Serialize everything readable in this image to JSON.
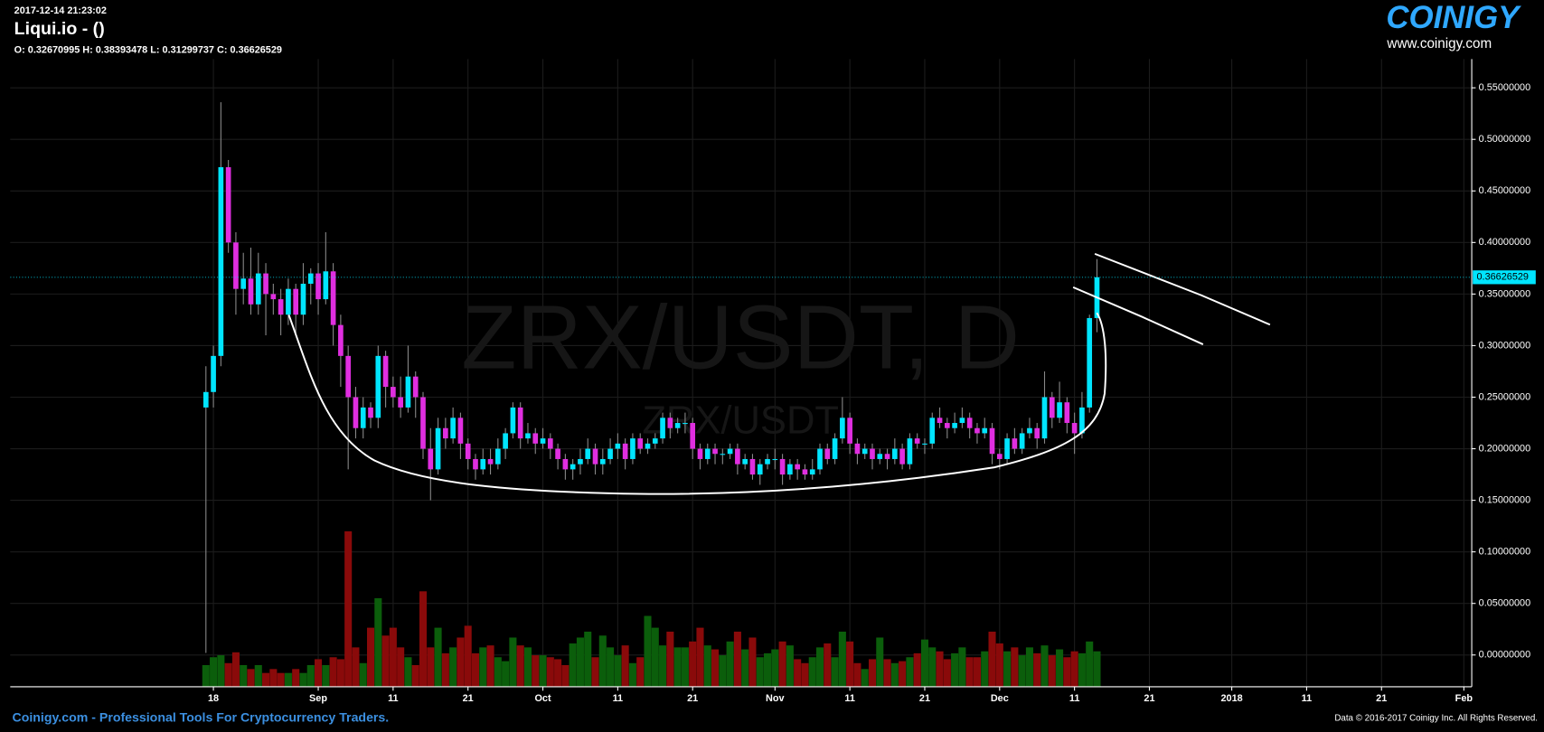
{
  "timestamp": "2017-12-14 21:23:02",
  "exchange_title": "Liqui.io -  ()",
  "ohlc_label": "O: 0.32670995 H: 0.38393478 L: 0.31299737 C: 0.36626529",
  "logo": "COINIGY",
  "logo_url": "www.coinigy.com",
  "footer_left": "Coinigy.com - Professional Tools For Cryptocurrency Traders.",
  "footer_right": "Data © 2016-2017 Coinigy Inc. All Rights Reserved.",
  "chart_data": {
    "type": "candlestick",
    "watermark": "ZRX/USDT, D",
    "watermark_small": "ZRX/USDT",
    "up_color": "#00e5ff",
    "down_color": "#e02ee0",
    "volume_up_color": "#0b5e0b",
    "volume_down_color": "#8a0a0a",
    "grid": true,
    "xlim": [
      "2017-07-22",
      "2018-02-01"
    ],
    "xticks": [
      {
        "value": "2017-08-18",
        "label": "18"
      },
      {
        "value": "2017-09-01",
        "label": "Sep"
      },
      {
        "value": "2017-09-11",
        "label": "11"
      },
      {
        "value": "2017-09-21",
        "label": "21"
      },
      {
        "value": "2017-10-01",
        "label": "Oct"
      },
      {
        "value": "2017-10-11",
        "label": "11"
      },
      {
        "value": "2017-10-21",
        "label": "21"
      },
      {
        "value": "2017-11-01",
        "label": "Nov"
      },
      {
        "value": "2017-11-11",
        "label": "11"
      },
      {
        "value": "2017-11-21",
        "label": "21"
      },
      {
        "value": "2017-12-01",
        "label": "Dec"
      },
      {
        "value": "2017-12-11",
        "label": "11"
      },
      {
        "value": "2017-12-21",
        "label": "21"
      },
      {
        "value": "2018-01-01",
        "label": "2018"
      },
      {
        "value": "2018-01-11",
        "label": "11"
      },
      {
        "value": "2018-01-21",
        "label": "21"
      },
      {
        "value": "2018-02-01",
        "label": "Feb"
      }
    ],
    "ylim": [
      -0.0308,
      0.5779
    ],
    "yticks": [
      {
        "value": 0,
        "label": "0.00000000"
      },
      {
        "value": 0.05,
        "label": "0.05000000"
      },
      {
        "value": 0.1,
        "label": "0.10000000"
      },
      {
        "value": 0.15,
        "label": "0.15000000"
      },
      {
        "value": 0.2,
        "label": "0.20000000"
      },
      {
        "value": 0.25,
        "label": "0.25000000"
      },
      {
        "value": 0.3,
        "label": "0.30000000"
      },
      {
        "value": 0.35,
        "label": "0.35000000"
      },
      {
        "value": 0.4,
        "label": "0.40000000"
      },
      {
        "value": 0.45,
        "label": "0.45000000"
      },
      {
        "value": 0.5,
        "label": "0.50000000"
      },
      {
        "value": 0.55,
        "label": "0.55000000"
      }
    ],
    "x": [
      "2017-08-17",
      "2017-08-18",
      "2017-08-19",
      "2017-08-20",
      "2017-08-21",
      "2017-08-22",
      "2017-08-23",
      "2017-08-24",
      "2017-08-25",
      "2017-08-26",
      "2017-08-27",
      "2017-08-28",
      "2017-08-29",
      "2017-08-30",
      "2017-08-31",
      "2017-09-01",
      "2017-09-02",
      "2017-09-03",
      "2017-09-04",
      "2017-09-05",
      "2017-09-06",
      "2017-09-07",
      "2017-09-08",
      "2017-09-09",
      "2017-09-10",
      "2017-09-11",
      "2017-09-12",
      "2017-09-13",
      "2017-09-14",
      "2017-09-15",
      "2017-09-16",
      "2017-09-17",
      "2017-09-18",
      "2017-09-19",
      "2017-09-20",
      "2017-09-21",
      "2017-09-22",
      "2017-09-23",
      "2017-09-24",
      "2017-09-25",
      "2017-09-26",
      "2017-09-27",
      "2017-09-28",
      "2017-09-29",
      "2017-09-30",
      "2017-10-01",
      "2017-10-02",
      "2017-10-03",
      "2017-10-04",
      "2017-10-05",
      "2017-10-06",
      "2017-10-07",
      "2017-10-08",
      "2017-10-09",
      "2017-10-10",
      "2017-10-11",
      "2017-10-12",
      "2017-10-13",
      "2017-10-14",
      "2017-10-15",
      "2017-10-16",
      "2017-10-17",
      "2017-10-18",
      "2017-10-19",
      "2017-10-20",
      "2017-10-21",
      "2017-10-22",
      "2017-10-23",
      "2017-10-24",
      "2017-10-25",
      "2017-10-26",
      "2017-10-27",
      "2017-10-28",
      "2017-10-29",
      "2017-10-30",
      "2017-10-31",
      "2017-11-01",
      "2017-11-02",
      "2017-11-03",
      "2017-11-04",
      "2017-11-05",
      "2017-11-06",
      "2017-11-07",
      "2017-11-08",
      "2017-11-09",
      "2017-11-10",
      "2017-11-11",
      "2017-11-12",
      "2017-11-13",
      "2017-11-14",
      "2017-11-15",
      "2017-11-16",
      "2017-11-17",
      "2017-11-18",
      "2017-11-19",
      "2017-11-20",
      "2017-11-21",
      "2017-11-22",
      "2017-11-23",
      "2017-11-24",
      "2017-11-25",
      "2017-11-26",
      "2017-11-27",
      "2017-11-28",
      "2017-11-29",
      "2017-11-30",
      "2017-12-01",
      "2017-12-02",
      "2017-12-03",
      "2017-12-04",
      "2017-12-05",
      "2017-12-06",
      "2017-12-07",
      "2017-12-08",
      "2017-12-09",
      "2017-12-10",
      "2017-12-11",
      "2017-12-12",
      "2017-12-13",
      "2017-12-14"
    ],
    "open": [
      0.24,
      0.255,
      0.29,
      0.473,
      0.4,
      0.355,
      0.365,
      0.34,
      0.37,
      0.35,
      0.345,
      0.33,
      0.355,
      0.33,
      0.36,
      0.37,
      0.345,
      0.372,
      0.32,
      0.29,
      0.25,
      0.22,
      0.24,
      0.23,
      0.29,
      0.26,
      0.25,
      0.24,
      0.27,
      0.25,
      0.2,
      0.18,
      0.22,
      0.21,
      0.23,
      0.205,
      0.19,
      0.18,
      0.19,
      0.185,
      0.2,
      0.215,
      0.24,
      0.21,
      0.215,
      0.205,
      0.21,
      0.2,
      0.19,
      0.18,
      0.185,
      0.19,
      0.2,
      0.185,
      0.19,
      0.2,
      0.205,
      0.19,
      0.21,
      0.2,
      0.205,
      0.21,
      0.23,
      0.22,
      0.225,
      0.225,
      0.2,
      0.19,
      0.2,
      0.195,
      0.195,
      0.2,
      0.185,
      0.19,
      0.175,
      0.185,
      0.19,
      0.19,
      0.175,
      0.185,
      0.18,
      0.175,
      0.18,
      0.2,
      0.19,
      0.21,
      0.23,
      0.205,
      0.195,
      0.2,
      0.19,
      0.195,
      0.19,
      0.2,
      0.185,
      0.21,
      0.205,
      0.205,
      0.23,
      0.225,
      0.22,
      0.225,
      0.23,
      0.22,
      0.215,
      0.22,
      0.195,
      0.19,
      0.21,
      0.2,
      0.215,
      0.22,
      0.21,
      0.25,
      0.23,
      0.245,
      0.225,
      0.215,
      0.24,
      0.32670995
    ],
    "high": [
      0.28,
      0.3,
      0.536,
      0.48,
      0.41,
      0.39,
      0.395,
      0.39,
      0.38,
      0.36,
      0.355,
      0.365,
      0.36,
      0.38,
      0.375,
      0.38,
      0.41,
      0.38,
      0.33,
      0.3,
      0.26,
      0.25,
      0.245,
      0.3,
      0.295,
      0.27,
      0.27,
      0.3,
      0.275,
      0.255,
      0.22,
      0.23,
      0.23,
      0.24,
      0.235,
      0.21,
      0.195,
      0.2,
      0.2,
      0.21,
      0.22,
      0.245,
      0.245,
      0.225,
      0.22,
      0.22,
      0.215,
      0.205,
      0.195,
      0.19,
      0.2,
      0.21,
      0.205,
      0.2,
      0.21,
      0.215,
      0.21,
      0.215,
      0.215,
      0.21,
      0.215,
      0.235,
      0.235,
      0.23,
      0.235,
      0.23,
      0.205,
      0.205,
      0.205,
      0.2,
      0.205,
      0.205,
      0.195,
      0.195,
      0.19,
      0.195,
      0.2,
      0.195,
      0.19,
      0.19,
      0.185,
      0.19,
      0.205,
      0.205,
      0.215,
      0.25,
      0.235,
      0.21,
      0.205,
      0.205,
      0.2,
      0.2,
      0.21,
      0.205,
      0.215,
      0.215,
      0.21,
      0.235,
      0.24,
      0.23,
      0.235,
      0.24,
      0.235,
      0.225,
      0.23,
      0.225,
      0.2,
      0.215,
      0.22,
      0.22,
      0.23,
      0.225,
      0.275,
      0.255,
      0.265,
      0.25,
      0.235,
      0.255,
      0.33,
      0.38393478
    ],
    "low": [
      0.002,
      0.24,
      0.28,
      0.39,
      0.33,
      0.34,
      0.33,
      0.33,
      0.31,
      0.33,
      0.31,
      0.32,
      0.31,
      0.32,
      0.34,
      0.33,
      0.34,
      0.3,
      0.26,
      0.18,
      0.21,
      0.21,
      0.22,
      0.22,
      0.24,
      0.24,
      0.23,
      0.235,
      0.23,
      0.19,
      0.15,
      0.175,
      0.2,
      0.205,
      0.19,
      0.18,
      0.17,
      0.175,
      0.175,
      0.18,
      0.19,
      0.21,
      0.2,
      0.205,
      0.195,
      0.2,
      0.19,
      0.18,
      0.17,
      0.17,
      0.175,
      0.185,
      0.175,
      0.175,
      0.185,
      0.19,
      0.18,
      0.185,
      0.195,
      0.195,
      0.2,
      0.205,
      0.21,
      0.215,
      0.215,
      0.19,
      0.18,
      0.185,
      0.185,
      0.185,
      0.19,
      0.175,
      0.18,
      0.17,
      0.165,
      0.18,
      0.18,
      0.165,
      0.17,
      0.17,
      0.17,
      0.17,
      0.175,
      0.185,
      0.185,
      0.205,
      0.195,
      0.185,
      0.19,
      0.18,
      0.185,
      0.18,
      0.185,
      0.18,
      0.18,
      0.2,
      0.195,
      0.2,
      0.22,
      0.21,
      0.215,
      0.22,
      0.21,
      0.205,
      0.21,
      0.185,
      0.18,
      0.185,
      0.195,
      0.195,
      0.21,
      0.2,
      0.205,
      0.22,
      0.225,
      0.215,
      0.195,
      0.21,
      0.235,
      0.31299737
    ],
    "close": [
      0.255,
      0.29,
      0.473,
      0.4,
      0.355,
      0.365,
      0.34,
      0.37,
      0.35,
      0.345,
      0.33,
      0.355,
      0.33,
      0.36,
      0.37,
      0.345,
      0.372,
      0.32,
      0.29,
      0.25,
      0.22,
      0.24,
      0.23,
      0.29,
      0.26,
      0.25,
      0.24,
      0.27,
      0.25,
      0.2,
      0.18,
      0.22,
      0.21,
      0.23,
      0.205,
      0.19,
      0.18,
      0.19,
      0.185,
      0.2,
      0.215,
      0.24,
      0.21,
      0.215,
      0.205,
      0.21,
      0.2,
      0.19,
      0.18,
      0.185,
      0.19,
      0.2,
      0.185,
      0.19,
      0.2,
      0.205,
      0.19,
      0.21,
      0.2,
      0.205,
      0.21,
      0.23,
      0.22,
      0.225,
      0.225,
      0.2,
      0.19,
      0.2,
      0.195,
      0.195,
      0.2,
      0.185,
      0.19,
      0.175,
      0.185,
      0.19,
      0.19,
      0.175,
      0.185,
      0.18,
      0.175,
      0.18,
      0.2,
      0.19,
      0.21,
      0.23,
      0.205,
      0.195,
      0.2,
      0.19,
      0.195,
      0.19,
      0.2,
      0.185,
      0.21,
      0.205,
      0.205,
      0.23,
      0.225,
      0.22,
      0.225,
      0.23,
      0.22,
      0.215,
      0.22,
      0.195,
      0.19,
      0.21,
      0.2,
      0.215,
      0.22,
      0.21,
      0.25,
      0.23,
      0.245,
      0.225,
      0.215,
      0.24,
      0.32670995,
      0.36626529
    ],
    "volume_lim": [
      0,
      160
    ],
    "volume": [
      22,
      30,
      32,
      24,
      35,
      22,
      18,
      22,
      14,
      18,
      14,
      14,
      18,
      14,
      22,
      28,
      22,
      30,
      28,
      158,
      40,
      24,
      60,
      90,
      52,
      60,
      40,
      30,
      22,
      97,
      40,
      60,
      34,
      40,
      50,
      62,
      34,
      40,
      42,
      30,
      26,
      50,
      42,
      40,
      32,
      32,
      30,
      28,
      22,
      44,
      50,
      56,
      30,
      52,
      40,
      32,
      42,
      24,
      30,
      72,
      60,
      42,
      56,
      40,
      40,
      46,
      60,
      42,
      38,
      32,
      46,
      56,
      38,
      50,
      30,
      34,
      38,
      46,
      42,
      28,
      24,
      30,
      40,
      44,
      30,
      56,
      46,
      24,
      18,
      28,
      50,
      28,
      24,
      26,
      30,
      34,
      48,
      40,
      36,
      28,
      34,
      40,
      30,
      30,
      36,
      56,
      44,
      36,
      40,
      32,
      40,
      34,
      42,
      32,
      38,
      30,
      36,
      34,
      46,
      36
    ]
  }
}
